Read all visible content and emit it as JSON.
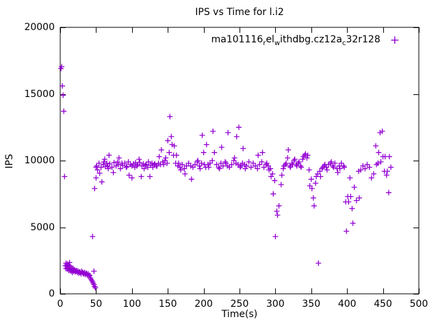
{
  "title": "IPS vs Time for l.i2",
  "xlabel": "Time(s)",
  "ylabel": "IPS",
  "legend": {
    "segments": [
      {
        "t": "ma101116"
      },
      {
        "t": "r",
        "sub": true
      },
      {
        "t": "el"
      },
      {
        "t": "w",
        "sub": true
      },
      {
        "t": "ithdbg.cz12a"
      },
      {
        "t": "c",
        "sub": true
      },
      {
        "t": "32r128"
      }
    ],
    "marker": "+"
  },
  "marker_color": "#9400d3",
  "axis_color": "#000000",
  "chart_data": {
    "type": "scatter",
    "title": "IPS vs Time for l.i2",
    "xlabel": "Time(s)",
    "ylabel": "IPS",
    "xlim": [
      0,
      500
    ],
    "ylim": [
      0,
      20000
    ],
    "xticks": [
      0,
      50,
      100,
      150,
      200,
      250,
      300,
      350,
      400,
      450,
      500
    ],
    "yticks": [
      0,
      5000,
      10000,
      15000,
      20000
    ],
    "grid": false,
    "legend_position": "top-right-inside",
    "series": [
      {
        "name": "ma101116rel withdbg.cz12ac32r128",
        "marker": "plus",
        "color": "#9400d3",
        "points": [
          [
            1,
            16900
          ],
          [
            2,
            17050
          ],
          [
            3,
            15600
          ],
          [
            4,
            14900
          ],
          [
            5,
            13700
          ],
          [
            6,
            8800
          ],
          [
            7,
            2100
          ],
          [
            8,
            1900
          ],
          [
            8,
            2300
          ],
          [
            9,
            2150
          ],
          [
            10,
            1850
          ],
          [
            10,
            2250
          ],
          [
            11,
            2000
          ],
          [
            12,
            1750
          ],
          [
            12,
            2150
          ],
          [
            13,
            1900
          ],
          [
            13,
            2350
          ],
          [
            14,
            1800
          ],
          [
            14,
            2050
          ],
          [
            15,
            1700
          ],
          [
            16,
            1850
          ],
          [
            16,
            1950
          ],
          [
            17,
            1600
          ],
          [
            18,
            1750
          ],
          [
            18,
            1900
          ],
          [
            19,
            1700
          ],
          [
            20,
            1800
          ],
          [
            21,
            1650
          ],
          [
            22,
            1700
          ],
          [
            23,
            1750
          ],
          [
            24,
            1600
          ],
          [
            25,
            1700
          ],
          [
            26,
            1550
          ],
          [
            27,
            1650
          ],
          [
            28,
            1600
          ],
          [
            29,
            1500
          ],
          [
            30,
            1700
          ],
          [
            31,
            1600
          ],
          [
            32,
            1550
          ],
          [
            33,
            1500
          ],
          [
            34,
            1600
          ],
          [
            35,
            1450
          ],
          [
            36,
            1550
          ],
          [
            37,
            1500
          ],
          [
            38,
            1400
          ],
          [
            39,
            1500
          ],
          [
            40,
            1350
          ],
          [
            41,
            1400
          ],
          [
            42,
            1200
          ],
          [
            43,
            1100
          ],
          [
            44,
            1000
          ],
          [
            45,
            900
          ],
          [
            45,
            4300
          ],
          [
            46,
            800
          ],
          [
            47,
            700
          ],
          [
            47,
            1700
          ],
          [
            48,
            550
          ],
          [
            48,
            7900
          ],
          [
            49,
            450
          ],
          [
            50,
            8700
          ],
          [
            50,
            9500
          ],
          [
            51,
            9600
          ],
          [
            52,
            9300
          ],
          [
            54,
            9800
          ],
          [
            55,
            9050
          ],
          [
            57,
            9500
          ],
          [
            58,
            8400
          ],
          [
            60,
            9700
          ],
          [
            61,
            9900
          ],
          [
            62,
            10100
          ],
          [
            63,
            9550
          ],
          [
            65,
            9800
          ],
          [
            66,
            9600
          ],
          [
            67,
            9400
          ],
          [
            68,
            10400
          ],
          [
            69,
            9750
          ],
          [
            72,
            9500
          ],
          [
            74,
            9100
          ],
          [
            75,
            9850
          ],
          [
            78,
            9600
          ],
          [
            80,
            9900
          ],
          [
            81,
            9700
          ],
          [
            82,
            10200
          ],
          [
            84,
            9400
          ],
          [
            86,
            9800
          ],
          [
            87,
            9650
          ],
          [
            90,
            9800
          ],
          [
            92,
            9500
          ],
          [
            93,
            9550
          ],
          [
            95,
            9900
          ],
          [
            96,
            8900
          ],
          [
            98,
            9700
          ],
          [
            100,
            8700
          ],
          [
            100,
            9600
          ],
          [
            102,
            9750
          ],
          [
            104,
            9500
          ],
          [
            105,
            9850
          ],
          [
            107,
            9600
          ],
          [
            108,
            9700
          ],
          [
            110,
            10100
          ],
          [
            111,
            9850
          ],
          [
            113,
            8800
          ],
          [
            114,
            9600
          ],
          [
            116,
            9750
          ],
          [
            117,
            9400
          ],
          [
            119,
            9650
          ],
          [
            120,
            9700
          ],
          [
            122,
            9500
          ],
          [
            123,
            9900
          ],
          [
            125,
            8800
          ],
          [
            126,
            9650
          ],
          [
            128,
            9800
          ],
          [
            129,
            9500
          ],
          [
            131,
            9700
          ],
          [
            132,
            9750
          ],
          [
            134,
            9600
          ],
          [
            135,
            9600
          ],
          [
            137,
            9800
          ],
          [
            138,
            10300
          ],
          [
            140,
            9700
          ],
          [
            141,
            10800
          ],
          [
            143,
            9900
          ],
          [
            144,
            9700
          ],
          [
            146,
            10000
          ],
          [
            147,
            10200
          ],
          [
            149,
            9800
          ],
          [
            150,
            11500
          ],
          [
            152,
            10600
          ],
          [
            153,
            13300
          ],
          [
            155,
            11800
          ],
          [
            156,
            11200
          ],
          [
            158,
            10400
          ],
          [
            159,
            11100
          ],
          [
            161,
            9800
          ],
          [
            162,
            10400
          ],
          [
            164,
            9600
          ],
          [
            165,
            9800
          ],
          [
            167,
            9500
          ],
          [
            168,
            9300
          ],
          [
            170,
            9700
          ],
          [
            173,
            9400
          ],
          [
            174,
            9000
          ],
          [
            176,
            9600
          ],
          [
            179,
            9800
          ],
          [
            182,
            9600
          ],
          [
            183,
            8600
          ],
          [
            185,
            9500
          ],
          [
            188,
            9700
          ],
          [
            191,
            9900
          ],
          [
            192,
            10000
          ],
          [
            194,
            9600
          ],
          [
            195,
            9400
          ],
          [
            197,
            9800
          ],
          [
            198,
            11900
          ],
          [
            200,
            10600
          ],
          [
            201,
            9700
          ],
          [
            203,
            9500
          ],
          [
            204,
            11200
          ],
          [
            206,
            9700
          ],
          [
            207,
            9500
          ],
          [
            209,
            9800
          ],
          [
            212,
            10000
          ],
          [
            213,
            12200
          ],
          [
            215,
            10600
          ],
          [
            218,
            9700
          ],
          [
            221,
            9500
          ],
          [
            222,
            9400
          ],
          [
            224,
            9800
          ],
          [
            225,
            11000
          ],
          [
            227,
            9600
          ],
          [
            230,
            9900
          ],
          [
            231,
            9800
          ],
          [
            233,
            9600
          ],
          [
            234,
            12100
          ],
          [
            236,
            9500
          ],
          [
            239,
            9700
          ],
          [
            242,
            10000
          ],
          [
            243,
            10200
          ],
          [
            245,
            9800
          ],
          [
            246,
            11800
          ],
          [
            248,
            9700
          ],
          [
            249,
            12500
          ],
          [
            251,
            9500
          ],
          [
            252,
            9600
          ],
          [
            254,
            9800
          ],
          [
            255,
            10900
          ],
          [
            257,
            9700
          ],
          [
            258,
            9400
          ],
          [
            260,
            9600
          ],
          [
            263,
            9900
          ],
          [
            266,
            9500
          ],
          [
            269,
            9800
          ],
          [
            272,
            9600
          ],
          [
            275,
            9400
          ],
          [
            276,
            10400
          ],
          [
            278,
            9700
          ],
          [
            281,
            9900
          ],
          [
            282,
            10600
          ],
          [
            284,
            9500
          ],
          [
            287,
            9700
          ],
          [
            288,
            9800
          ],
          [
            290,
            9600
          ],
          [
            291,
            9300
          ],
          [
            293,
            9400
          ],
          [
            294,
            8800
          ],
          [
            296,
            9000
          ],
          [
            297,
            7500
          ],
          [
            299,
            8500
          ],
          [
            300,
            4300
          ],
          [
            302,
            6200
          ],
          [
            303,
            5900
          ],
          [
            305,
            6600
          ],
          [
            308,
            8200
          ],
          [
            309,
            8900
          ],
          [
            311,
            9400
          ],
          [
            312,
            9600
          ],
          [
            314,
            9700
          ],
          [
            315,
            9800
          ],
          [
            317,
            10200
          ],
          [
            318,
            10800
          ],
          [
            320,
            9600
          ],
          [
            321,
            9500
          ],
          [
            323,
            9800
          ],
          [
            324,
            9700
          ],
          [
            326,
            10000
          ],
          [
            327,
            10100
          ],
          [
            329,
            9700
          ],
          [
            330,
            9600
          ],
          [
            332,
            9800
          ],
          [
            333,
            9900
          ],
          [
            335,
            9600
          ],
          [
            336,
            9500
          ],
          [
            338,
            10100
          ],
          [
            339,
            10300
          ],
          [
            341,
            10400
          ],
          [
            342,
            10500
          ],
          [
            344,
            10200
          ],
          [
            345,
            10400
          ],
          [
            347,
            9300
          ],
          [
            348,
            8100
          ],
          [
            350,
            8600
          ],
          [
            351,
            7900
          ],
          [
            353,
            7200
          ],
          [
            354,
            6600
          ],
          [
            356,
            8300
          ],
          [
            357,
            8800
          ],
          [
            359,
            9000
          ],
          [
            360,
            2300
          ],
          [
            362,
            9200
          ],
          [
            363,
            8800
          ],
          [
            365,
            9400
          ],
          [
            366,
            9500
          ],
          [
            368,
            9600
          ],
          [
            369,
            9700
          ],
          [
            371,
            9500
          ],
          [
            372,
            9300
          ],
          [
            374,
            9700
          ],
          [
            377,
            9800
          ],
          [
            378,
            9900
          ],
          [
            380,
            9600
          ],
          [
            381,
            9500
          ],
          [
            383,
            9800
          ],
          [
            386,
            9400
          ],
          [
            387,
            9100
          ],
          [
            389,
            9600
          ],
          [
            390,
            9400
          ],
          [
            392,
            9800
          ],
          [
            395,
            9600
          ],
          [
            396,
            9500
          ],
          [
            398,
            6900
          ],
          [
            399,
            4700
          ],
          [
            401,
            7300
          ],
          [
            402,
            6900
          ],
          [
            404,
            8700
          ],
          [
            405,
            7300
          ],
          [
            407,
            6400
          ],
          [
            408,
            5300
          ],
          [
            410,
            8000
          ],
          [
            413,
            7000
          ],
          [
            416,
            9200
          ],
          [
            417,
            7200
          ],
          [
            419,
            9300
          ],
          [
            422,
            9600
          ],
          [
            425,
            9400
          ],
          [
            428,
            9700
          ],
          [
            431,
            9500
          ],
          [
            434,
            8700
          ],
          [
            437,
            9000
          ],
          [
            440,
            11100
          ],
          [
            441,
            9700
          ],
          [
            443,
            9800
          ],
          [
            444,
            10600
          ],
          [
            446,
            12100
          ],
          [
            447,
            9900
          ],
          [
            449,
            12200
          ],
          [
            450,
            10300
          ],
          [
            452,
            9200
          ],
          [
            453,
            10300
          ],
          [
            455,
            8900
          ],
          [
            456,
            9200
          ],
          [
            458,
            7600
          ],
          [
            459,
            10300
          ],
          [
            461,
            9500
          ]
        ]
      }
    ]
  }
}
